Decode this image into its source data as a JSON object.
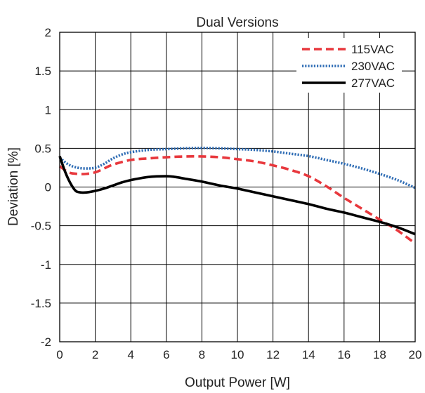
{
  "chart_data": {
    "type": "line",
    "title": "Dual Versions",
    "xlabel": "Output Power [W]",
    "ylabel": "Deviation [%]",
    "xlim": [
      0,
      20
    ],
    "ylim": [
      -2,
      2
    ],
    "xticks": [
      0,
      2,
      4,
      6,
      8,
      10,
      12,
      14,
      16,
      18,
      20
    ],
    "yticks": [
      -2,
      -1.5,
      -1,
      -0.5,
      0,
      0.5,
      1,
      1.5,
      2
    ],
    "ytick_labels": [
      "-2",
      "-1.5",
      "-1",
      "-0.5",
      "0",
      "0.5",
      "1",
      "1.5",
      "2"
    ],
    "grid": true,
    "legend_position": "top-right",
    "series": [
      {
        "name": "115VAC",
        "color": "#e8383d",
        "dash": "dashed",
        "x": [
          0,
          0.5,
          1,
          1.5,
          2,
          2.5,
          3,
          4,
          5,
          6,
          7,
          8,
          9,
          10,
          11,
          12,
          13,
          14,
          15,
          16,
          17,
          18,
          19,
          20
        ],
        "y": [
          0.27,
          0.19,
          0.17,
          0.17,
          0.19,
          0.24,
          0.29,
          0.35,
          0.37,
          0.385,
          0.395,
          0.395,
          0.385,
          0.36,
          0.33,
          0.28,
          0.22,
          0.14,
          0.01,
          -0.14,
          -0.28,
          -0.42,
          -0.56,
          -0.73
        ]
      },
      {
        "name": "230VAC",
        "color": "#2f6db5",
        "dash": "dotted",
        "x": [
          0,
          0.5,
          1,
          1.5,
          2,
          2.5,
          3,
          3.5,
          4,
          5,
          6,
          7,
          8,
          9,
          10,
          11,
          12,
          13,
          14,
          15,
          16,
          17,
          18,
          19,
          20
        ],
        "y": [
          0.38,
          0.29,
          0.25,
          0.24,
          0.25,
          0.3,
          0.37,
          0.42,
          0.45,
          0.48,
          0.49,
          0.5,
          0.505,
          0.5,
          0.49,
          0.48,
          0.46,
          0.43,
          0.4,
          0.35,
          0.3,
          0.24,
          0.17,
          0.09,
          -0.01
        ]
      },
      {
        "name": "277VAC",
        "color": "#000000",
        "dash": "solid",
        "x": [
          0,
          0.3,
          0.6,
          0.9,
          1.2,
          1.5,
          2,
          2.5,
          3,
          3.5,
          4,
          5,
          6,
          6.5,
          7,
          8,
          9,
          10,
          11,
          12,
          13,
          14,
          15,
          16,
          17,
          18,
          19,
          20
        ],
        "y": [
          0.4,
          0.2,
          0.05,
          -0.05,
          -0.07,
          -0.07,
          -0.05,
          -0.02,
          0.02,
          0.06,
          0.09,
          0.13,
          0.14,
          0.13,
          0.11,
          0.07,
          0.02,
          -0.02,
          -0.07,
          -0.12,
          -0.17,
          -0.22,
          -0.28,
          -0.33,
          -0.39,
          -0.45,
          -0.52,
          -0.61
        ]
      }
    ]
  }
}
